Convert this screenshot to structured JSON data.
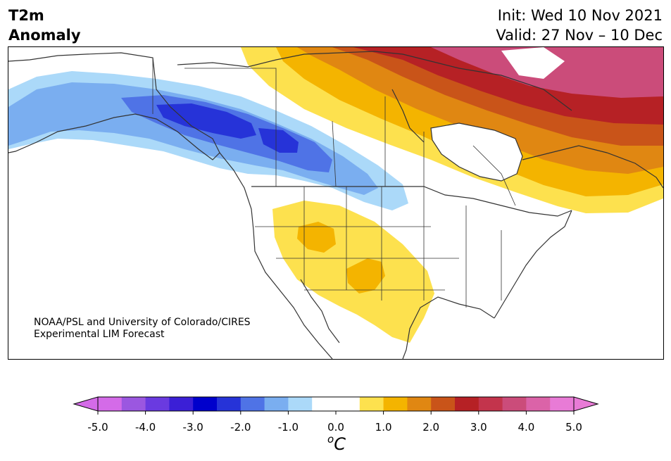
{
  "header": {
    "title_line1": "T2m",
    "title_line2": "Anomaly",
    "init_label": "Init: Wed 10 Nov 2021",
    "valid_label": "Valid: 27 Nov – 10 Dec"
  },
  "credit": {
    "line1": "NOAA/PSL and University of Colorado/CIRES",
    "line2": "Experimental LIM Forecast"
  },
  "colorbar": {
    "unit_sup": "o",
    "unit_main": "C",
    "ticks": [
      "-5.0",
      "-4.0",
      "-3.0",
      "-2.0",
      "-1.0",
      "0.0",
      "1.0",
      "2.0",
      "3.0",
      "4.0",
      "5.0"
    ],
    "colors": [
      "#d46be8",
      "#9b57e0",
      "#6a3ae0",
      "#3b1fd6",
      "#0000cc",
      "#2633d8",
      "#4f73e6",
      "#7aaef0",
      "#abd9f9",
      "#ffffff",
      "#ffffff",
      "#fde14e",
      "#f4b400",
      "#e08712",
      "#c95419",
      "#b62125",
      "#c3344c",
      "#cb4c7a",
      "#db63a8",
      "#e87bd6"
    ],
    "under_color": "#d46be8",
    "over_color": "#e87bd6"
  },
  "map_layers": [
    {
      "name": "cold-anomaly-weak",
      "color": "#abd9f9"
    },
    {
      "name": "cold-anomaly-moderate",
      "color": "#7aaef0"
    },
    {
      "name": "cold-anomaly-strong",
      "color": "#4f73e6"
    },
    {
      "name": "cold-anomaly-core",
      "color": "#2633d8"
    },
    {
      "name": "warm-anomaly-weak",
      "color": "#fde14e"
    },
    {
      "name": "warm-anomaly-moderate",
      "color": "#f4b400"
    },
    {
      "name": "warm-anomaly-strong",
      "color": "#e08712"
    },
    {
      "name": "warm-anomaly-very-strong",
      "color": "#c95419"
    },
    {
      "name": "warm-anomaly-extreme",
      "color": "#b62125"
    },
    {
      "name": "warm-anomaly-peak",
      "color": "#cb4c7a"
    }
  ]
}
